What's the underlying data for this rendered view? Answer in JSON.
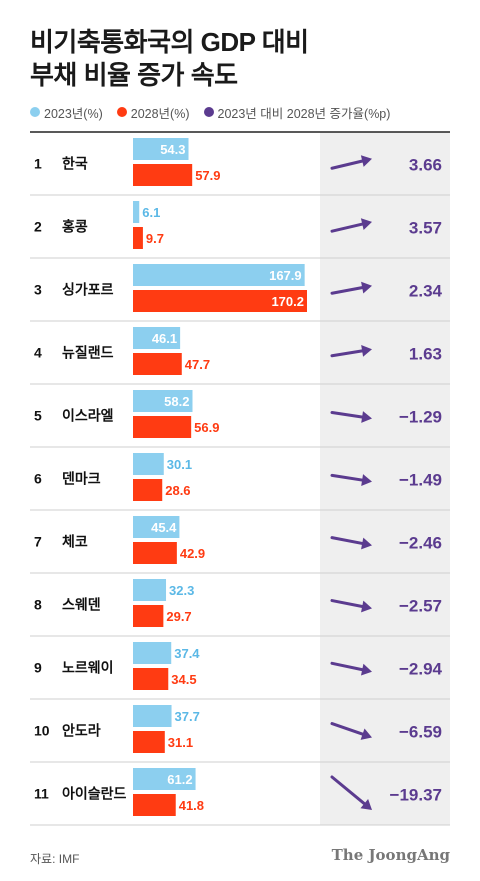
{
  "title": {
    "line1": "비기축통화국의 GDP 대비",
    "line2": "부채 비율 증가 속도"
  },
  "legend": [
    {
      "label": "2023년(%)",
      "color": "#8ccfef"
    },
    {
      "label": "2028년(%)",
      "color": "#ff3b12"
    },
    {
      "label": "2023년 대비 2028년 증가율(%p)",
      "color": "#5b3b8f"
    }
  ],
  "source": "자료: IMF",
  "brand": "The JoongAng",
  "chart_data": {
    "type": "bar",
    "categories": [
      "한국",
      "홍콩",
      "싱가포르",
      "뉴질랜드",
      "이스라엘",
      "덴마크",
      "체코",
      "스웨덴",
      "노르웨이",
      "안도라",
      "아이슬란드"
    ],
    "ranks": [
      "1",
      "2",
      "3",
      "4",
      "5",
      "6",
      "7",
      "8",
      "9",
      "10",
      "11"
    ],
    "series": [
      {
        "name": "2023년(%)",
        "values": [
          54.3,
          6.1,
          167.9,
          46.1,
          58.2,
          30.1,
          45.4,
          32.3,
          37.4,
          37.7,
          61.2
        ]
      },
      {
        "name": "2028년(%)",
        "values": [
          57.9,
          9.7,
          170.2,
          47.7,
          56.9,
          28.6,
          42.9,
          29.7,
          34.5,
          31.1,
          41.8
        ]
      },
      {
        "name": "2023년 대비 2028년 증가율(%p)",
        "values": [
          3.66,
          3.57,
          2.34,
          1.63,
          -1.29,
          -1.49,
          -2.46,
          -2.57,
          -2.94,
          -6.59,
          -19.37
        ]
      }
    ],
    "value_labels": {
      "y2023": [
        "54.3",
        "6.1",
        "167.9",
        "46.1",
        "58.2",
        "30.1",
        "45.4",
        "32.3",
        "37.4",
        "37.7",
        "61.2"
      ],
      "y2028": [
        "57.9",
        "9.7",
        "170.2",
        "47.7",
        "56.9",
        "28.6",
        "42.9",
        "29.7",
        "34.5",
        "31.1",
        "41.8"
      ],
      "change": [
        "3.66",
        "3.57",
        "2.34",
        "1.63",
        "−1.29",
        "−1.49",
        "−2.46",
        "−2.57",
        "−2.94",
        "−6.59",
        "−19.37"
      ]
    },
    "colors": {
      "y2023": "#8ccfef",
      "y2028": "#ff3b12",
      "change": "#5b3b8f",
      "change_bg": "#efefef",
      "y2023_text": "#5bb8e6"
    }
  }
}
